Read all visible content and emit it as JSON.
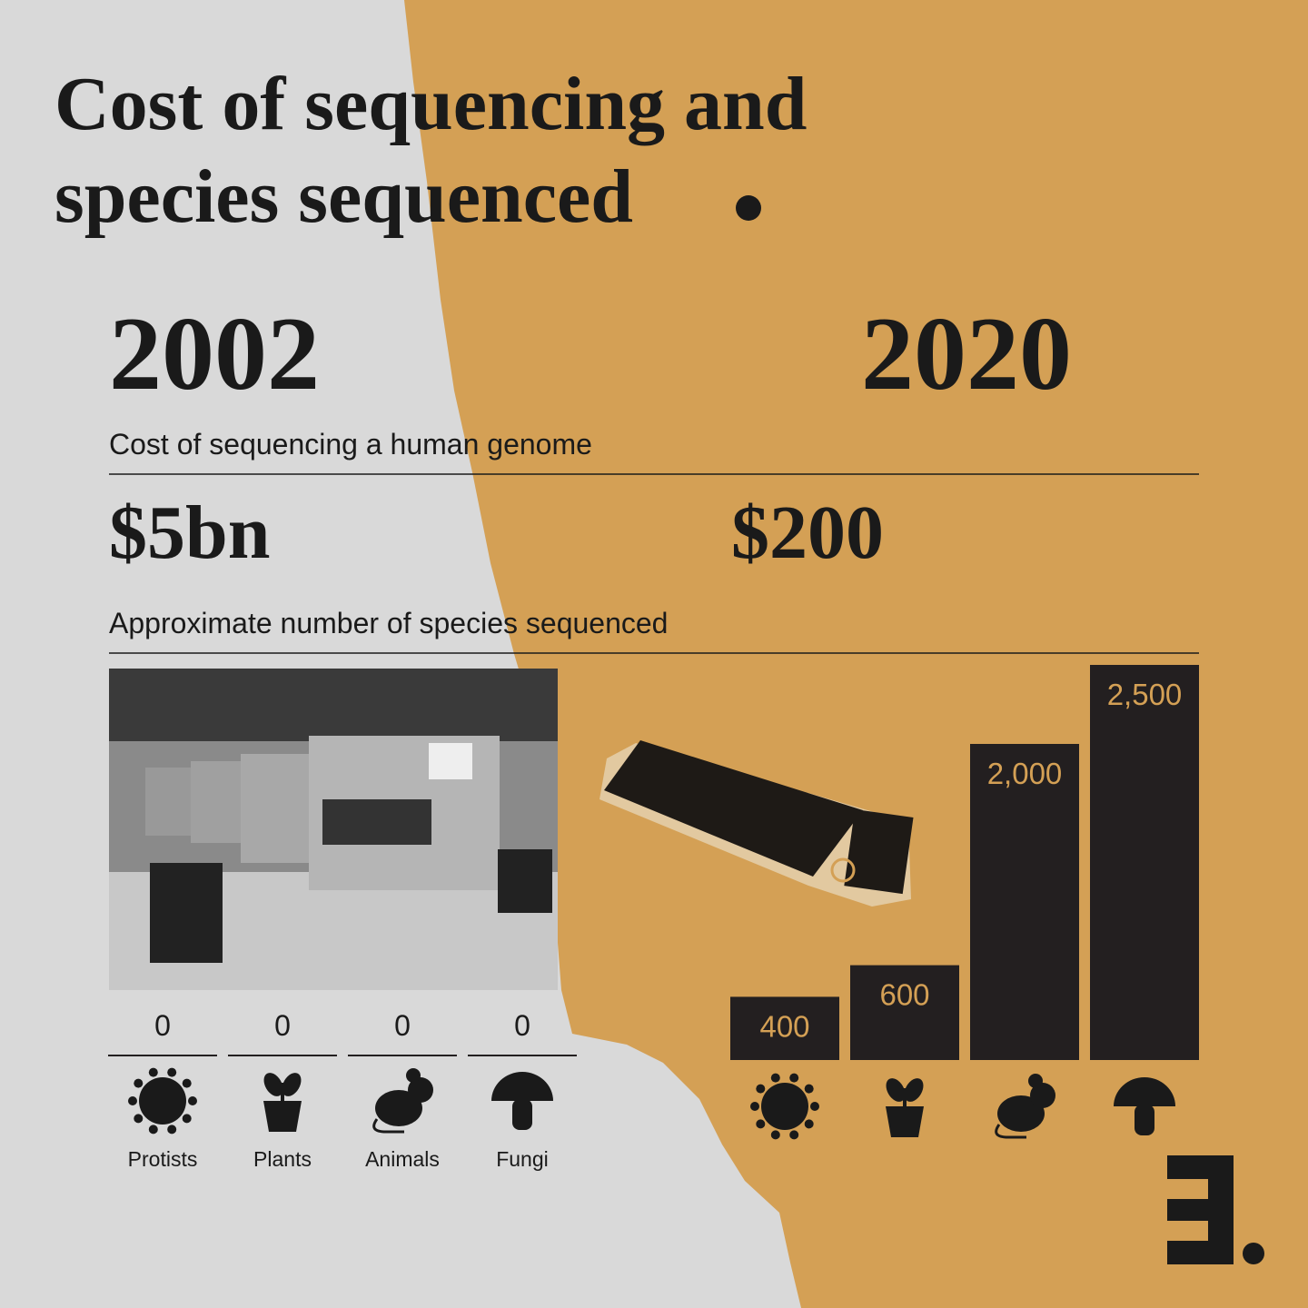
{
  "title": "Cost of sequencing and species sequenced",
  "cost_label": "Cost of sequencing a human genome",
  "costs": [
    "$5bn",
    "$200"
  ],
  "species_label": "Approximate number of species sequenced",
  "chart_data": {
    "type": "bar",
    "categories": [
      "Protists",
      "Plants",
      "Animals",
      "Fungi"
    ],
    "series": [
      {
        "name": "2002",
        "color": "#231f20",
        "values": [
          0,
          0,
          0,
          0
        ]
      },
      {
        "name": "2020",
        "color": "#231f20",
        "values": [
          400,
          600,
          2000,
          2500
        ],
        "value_labels": [
          "400",
          "600",
          "2,000",
          "2,500"
        ]
      }
    ]
  }
}
